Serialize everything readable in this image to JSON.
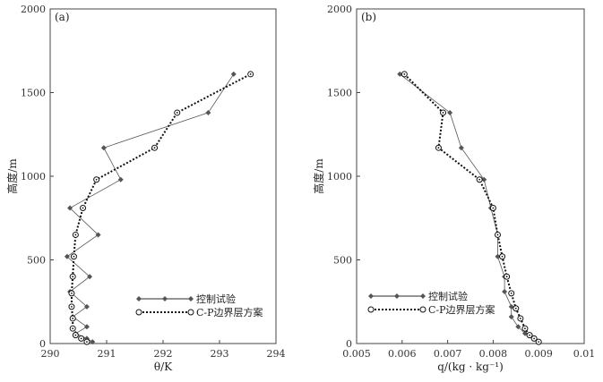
{
  "chart_data": [
    {
      "type": "line",
      "panel_label": "(a)",
      "xlabel": "θ/K",
      "ylabel": "高度/m",
      "xlim": [
        290,
        294
      ],
      "ylim": [
        0,
        2000
      ],
      "xticks": [
        "290",
        "291",
        "292",
        "293",
        "294"
      ],
      "yticks": [
        "0",
        "500",
        "1000",
        "1500",
        "2000"
      ],
      "legend_position": "bottom-right",
      "series": [
        {
          "name": "控制试验",
          "style": "thin-solid-diamond",
          "color": "#555555",
          "points": [
            [
              290.75,
              10
            ],
            [
              290.65,
              30
            ],
            [
              290.45,
              60
            ],
            [
              290.65,
              100
            ],
            [
              290.4,
              160
            ],
            [
              290.65,
              220
            ],
            [
              290.35,
              310
            ],
            [
              290.7,
              400
            ],
            [
              290.3,
              520
            ],
            [
              290.85,
              650
            ],
            [
              290.35,
              810
            ],
            [
              291.25,
              980
            ],
            [
              290.95,
              1170
            ],
            [
              292.8,
              1380
            ],
            [
              293.25,
              1610
            ]
          ]
        },
        {
          "name": "C-P边界层方案",
          "style": "dotted-circle",
          "color": "#111111",
          "points": [
            [
              290.65,
              10
            ],
            [
              290.55,
              30
            ],
            [
              290.45,
              50
            ],
            [
              290.4,
              90
            ],
            [
              290.4,
              150
            ],
            [
              290.38,
              220
            ],
            [
              290.38,
              300
            ],
            [
              290.4,
              400
            ],
            [
              290.42,
              520
            ],
            [
              290.45,
              650
            ],
            [
              290.58,
              810
            ],
            [
              290.82,
              980
            ],
            [
              291.85,
              1170
            ],
            [
              292.25,
              1380
            ],
            [
              293.55,
              1610
            ]
          ]
        }
      ]
    },
    {
      "type": "line",
      "panel_label": "(b)",
      "xlabel": "q/(kg · kg⁻¹)",
      "ylabel": "高度/m",
      "xlim": [
        0.005,
        0.01
      ],
      "ylim": [
        0,
        2000
      ],
      "xticks": [
        "0.005",
        "0.006",
        "0.007",
        "0.008",
        "0.009",
        "0.01"
      ],
      "yticks": [
        "0",
        "500",
        "1000",
        "1500",
        "2000"
      ],
      "legend_position": "bottom-left",
      "series": [
        {
          "name": "控制试验",
          "style": "thin-solid-diamond",
          "color": "#555555",
          "points": [
            [
              0.00595,
              1610
            ],
            [
              0.00705,
              1380
            ],
            [
              0.0073,
              1170
            ],
            [
              0.0078,
              980
            ],
            [
              0.00795,
              810
            ],
            [
              0.0081,
              650
            ],
            [
              0.0081,
              520
            ],
            [
              0.00825,
              400
            ],
            [
              0.00825,
              310
            ],
            [
              0.0084,
              220
            ],
            [
              0.0084,
              160
            ],
            [
              0.00855,
              100
            ],
            [
              0.0087,
              60
            ],
            [
              0.0089,
              30
            ],
            [
              0.009,
              10
            ]
          ]
        },
        {
          "name": "C-P边界层方案",
          "style": "dotted-circle",
          "color": "#111111",
          "points": [
            [
              0.00605,
              1610
            ],
            [
              0.0069,
              1380
            ],
            [
              0.0068,
              1170
            ],
            [
              0.0077,
              980
            ],
            [
              0.008,
              810
            ],
            [
              0.0081,
              650
            ],
            [
              0.0082,
              520
            ],
            [
              0.0083,
              400
            ],
            [
              0.0084,
              300
            ],
            [
              0.0085,
              210
            ],
            [
              0.0086,
              150
            ],
            [
              0.0087,
              90
            ],
            [
              0.0088,
              50
            ],
            [
              0.0089,
              30
            ],
            [
              0.009,
              10
            ]
          ]
        }
      ]
    }
  ]
}
